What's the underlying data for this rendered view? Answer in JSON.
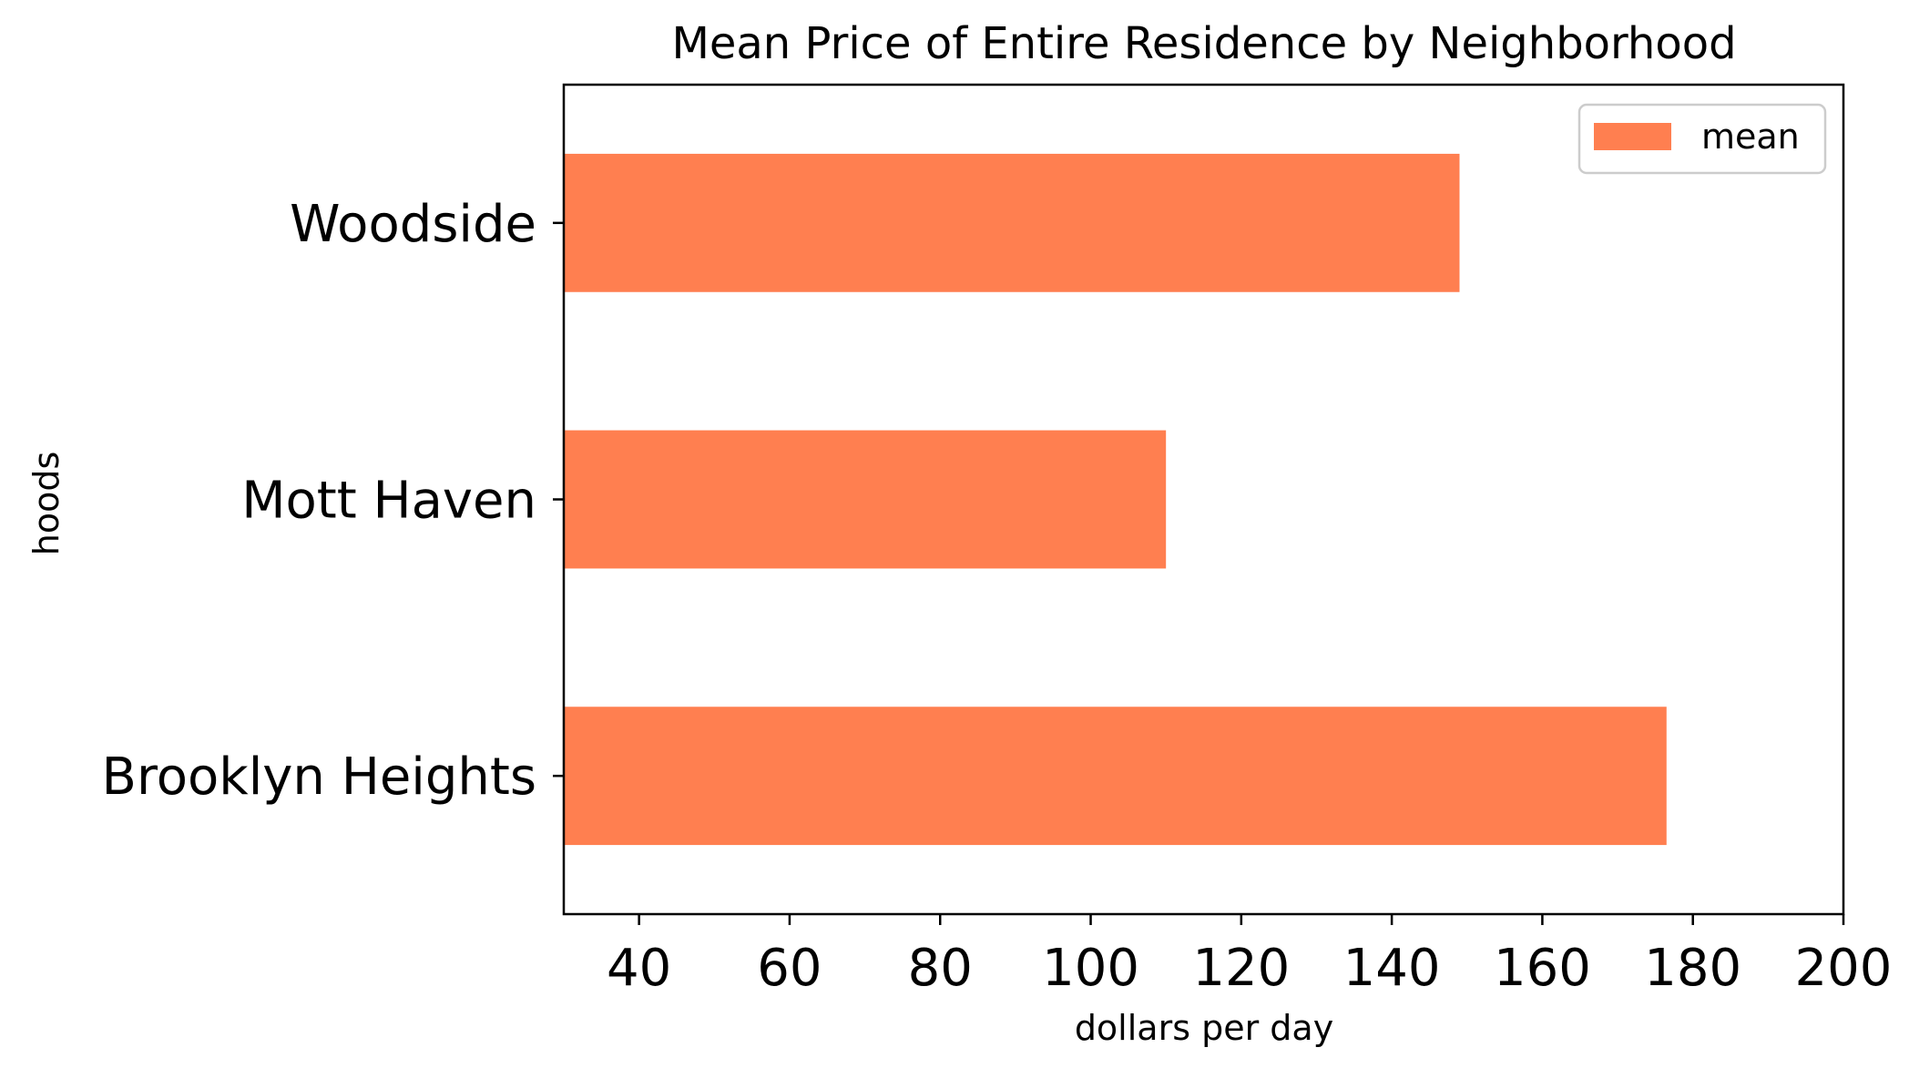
{
  "chart_data": {
    "type": "bar",
    "orientation": "horizontal",
    "title": "Mean Price of Entire Residence by Neighborhood",
    "xlabel": "dollars per day",
    "ylabel": "hoods",
    "categories": [
      "Brooklyn Heights",
      "Mott Haven",
      "Woodside"
    ],
    "series": [
      {
        "name": "mean",
        "values": [
          176.5,
          110,
          149
        ],
        "color": "#ff7f50"
      }
    ],
    "xlim": [
      30,
      200
    ],
    "xticks": [
      40,
      60,
      80,
      100,
      120,
      140,
      160,
      180,
      200
    ],
    "legend": {
      "position": "top-right",
      "entries": [
        "mean"
      ]
    },
    "grid": false
  }
}
